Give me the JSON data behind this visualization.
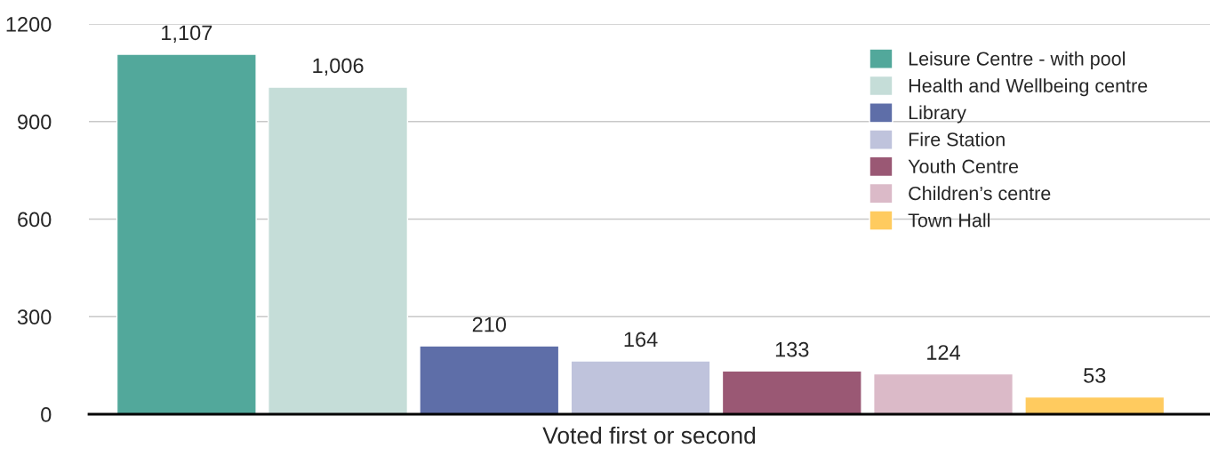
{
  "chart_data": {
    "type": "bar",
    "categories": [
      "Voted first or second"
    ],
    "series": [
      {
        "name": "Leisure Centre - with pool",
        "color": "#52a89b",
        "values": [
          1107
        ],
        "value_labels": [
          "1,107"
        ]
      },
      {
        "name": "Health and Wellbeing centre",
        "color": "#c5ddd8",
        "values": [
          1006
        ],
        "value_labels": [
          "1,006"
        ]
      },
      {
        "name": "Library",
        "color": "#5e6ea8",
        "values": [
          210
        ],
        "value_labels": [
          "210"
        ]
      },
      {
        "name": "Fire Station",
        "color": "#bfc3dc",
        "values": [
          164
        ],
        "value_labels": [
          "164"
        ]
      },
      {
        "name": "Youth Centre",
        "color": "#9a5874",
        "values": [
          133
        ],
        "value_labels": [
          "133"
        ]
      },
      {
        "name": "Children’s centre",
        "color": "#dbbac8",
        "values": [
          124
        ],
        "value_labels": [
          "124"
        ]
      },
      {
        "name": "Town Hall",
        "color": "#ffcb5f",
        "values": [
          53
        ],
        "value_labels": [
          "53"
        ]
      }
    ],
    "ylim": [
      0,
      1200
    ],
    "yticks": [
      0,
      300,
      600,
      900,
      1200
    ],
    "grid": "y",
    "legend": "top right"
  }
}
